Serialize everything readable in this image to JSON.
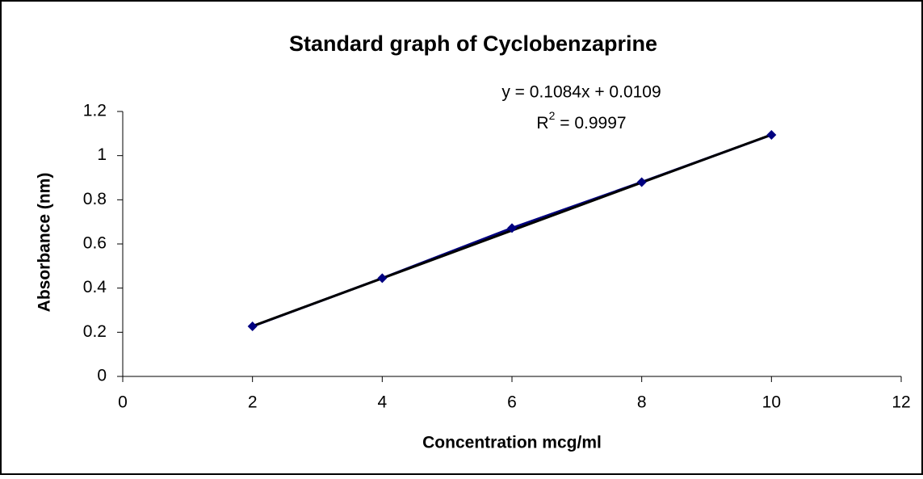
{
  "chart_data": {
    "type": "line",
    "title": "Standard graph of Cyclobenzaprine",
    "x_label": "Concentration mcg/ml",
    "y_label": "Absorbance (nm)",
    "x": [
      2,
      4,
      6,
      8,
      10
    ],
    "series": [
      {
        "color": "#000080",
        "values": [
          0.227,
          0.445,
          0.672,
          0.88,
          1.094
        ]
      }
    ],
    "trendline": {
      "color": "#000000",
      "slope": 0.1084,
      "intercept": 0.0109,
      "equation": "y = 0.1084x + 0.0109",
      "r2_parts": [
        "R",
        "2",
        " = 0.9997"
      ]
    },
    "xlim": [
      0,
      12
    ],
    "xticks": [
      0,
      2,
      4,
      6,
      8,
      10,
      12
    ],
    "ylim": [
      0,
      1.2
    ],
    "yticks": [
      0,
      0.2,
      0.4,
      0.6,
      0.8,
      1,
      1.2
    ]
  }
}
